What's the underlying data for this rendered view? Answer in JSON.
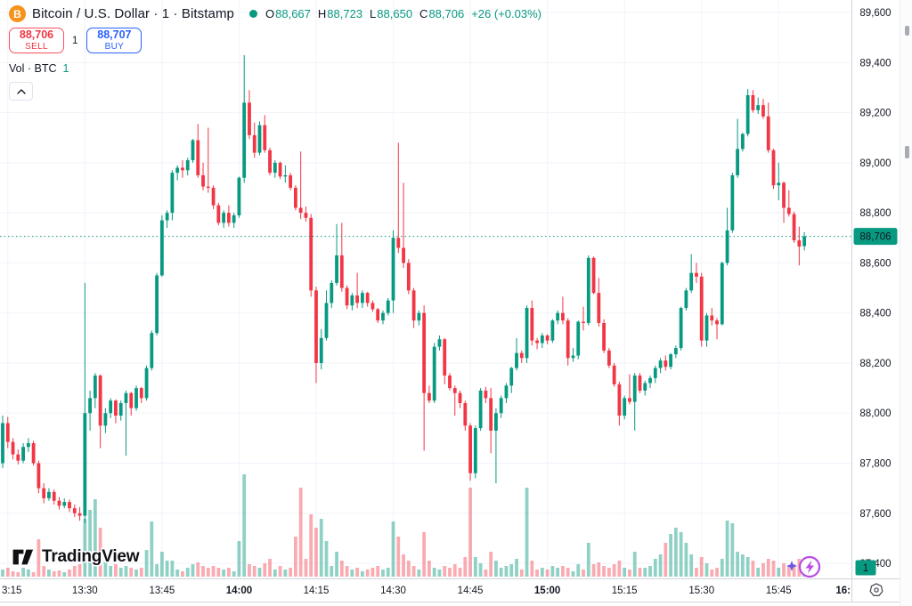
{
  "header": {
    "symbol_title": "Bitcoin / U.S. Dollar · 1 · Bitstamp",
    "ohlc": {
      "open_label": "O",
      "open": "88,667",
      "high_label": "H",
      "high": "88,723",
      "low_label": "L",
      "low": "88,650",
      "close_label": "C",
      "close": "88,706",
      "change": "+26 (+0.03%)"
    },
    "sell": {
      "price": "88,706",
      "label": "SELL"
    },
    "spread": "1",
    "buy": {
      "price": "88,707",
      "label": "BUY"
    },
    "volume_legend": {
      "label": "Vol · BTC",
      "value": "1"
    }
  },
  "watermark": {
    "text": "TradingView"
  },
  "colors": {
    "up": "#089981",
    "down": "#F23645",
    "vol_up": "rgba(8,153,129,0.45)",
    "vol_down": "rgba(242,54,69,0.42)",
    "grid": "#F0F3FA",
    "axis_border": "#D1D4DC",
    "text": "#131722",
    "buy_blue": "#2962FF",
    "bitcoin_orange": "#F7931A",
    "badge_text": "#ffffff"
  },
  "chart_data": {
    "type": "candlestick+volume",
    "symbol": "BTCUSD Bitstamp",
    "interval_minutes": 1,
    "start_time": "13:14",
    "end_time": "15:50",
    "grid": true,
    "legend_position": "top-left",
    "price_axis": {
      "side": "right",
      "tick_values": [
        89600,
        89400,
        89200,
        89000,
        88800,
        88600,
        88400,
        88200,
        88000,
        87800,
        87600,
        87400
      ],
      "tick_labels": [
        "89,600",
        "89,400",
        "89,200",
        "89,000",
        "88,800",
        "88,600",
        "88,400",
        "88,200",
        "88,000",
        "87,800",
        "87,600",
        "87,400"
      ]
    },
    "current_price": {
      "value": 88706,
      "label": "88,706"
    },
    "volume_axis_badge": "1",
    "time_axis": {
      "ticks": [
        {
          "idx": 1,
          "label": "3:15",
          "bold": false,
          "clip": "start"
        },
        {
          "idx": 16,
          "label": "13:30",
          "bold": false
        },
        {
          "idx": 31,
          "label": "13:45",
          "bold": false
        },
        {
          "idx": 46,
          "label": "14:00",
          "bold": true
        },
        {
          "idx": 61,
          "label": "14:15",
          "bold": false
        },
        {
          "idx": 76,
          "label": "14:30",
          "bold": false
        },
        {
          "idx": 91,
          "label": "14:45",
          "bold": false
        },
        {
          "idx": 106,
          "label": "15:00",
          "bold": true
        },
        {
          "idx": 121,
          "label": "15:15",
          "bold": false
        },
        {
          "idx": 136,
          "label": "15:30",
          "bold": false
        },
        {
          "idx": 151,
          "label": "15:45",
          "bold": false
        },
        {
          "idx": 166,
          "label": "16:",
          "bold": true,
          "clip": "end"
        }
      ]
    },
    "candles_format": [
      "open",
      "high",
      "low",
      "close",
      "relative_volume"
    ],
    "candles": [
      [
        87800,
        87990,
        87780,
        87960,
        8
      ],
      [
        87960,
        87985,
        87860,
        87885,
        10
      ],
      [
        87885,
        87900,
        87815,
        87835,
        6
      ],
      [
        87835,
        87855,
        87795,
        87810,
        5
      ],
      [
        87810,
        87880,
        87800,
        87865,
        10
      ],
      [
        87865,
        87900,
        87845,
        87880,
        8
      ],
      [
        87880,
        87890,
        87790,
        87800,
        5
      ],
      [
        87800,
        87810,
        87680,
        87700,
        42
      ],
      [
        87700,
        87720,
        87640,
        87660,
        12
      ],
      [
        87660,
        87700,
        87650,
        87685,
        8
      ],
      [
        87685,
        87695,
        87635,
        87650,
        6
      ],
      [
        87650,
        87665,
        87615,
        87630,
        7
      ],
      [
        87630,
        87660,
        87620,
        87645,
        5
      ],
      [
        87645,
        87655,
        87605,
        87620,
        8
      ],
      [
        87620,
        87635,
        87585,
        87600,
        12
      ],
      [
        87600,
        87625,
        87570,
        87590,
        14
      ],
      [
        87590,
        88520,
        87560,
        88000,
        65
      ],
      [
        88000,
        88090,
        87930,
        88060,
        75
      ],
      [
        88060,
        88160,
        88020,
        88150,
        87
      ],
      [
        88150,
        88155,
        87860,
        87950,
        55
      ],
      [
        87950,
        88020,
        87920,
        88000,
        20
      ],
      [
        88000,
        88060,
        87980,
        88050,
        12
      ],
      [
        88050,
        88055,
        87960,
        87990,
        14
      ],
      [
        87990,
        88050,
        87970,
        88040,
        10
      ],
      [
        88040,
        88090,
        87830,
        88080,
        12
      ],
      [
        88080,
        88085,
        87990,
        88020,
        10
      ],
      [
        88020,
        88110,
        88010,
        88100,
        8
      ],
      [
        88100,
        88105,
        88040,
        88060,
        10
      ],
      [
        88060,
        88190,
        88050,
        88180,
        30
      ],
      [
        88180,
        88330,
        88170,
        88320,
        62
      ],
      [
        88320,
        88560,
        88310,
        88550,
        14
      ],
      [
        88550,
        88790,
        88545,
        88770,
        28
      ],
      [
        88770,
        88810,
        88740,
        88800,
        18
      ],
      [
        88800,
        88970,
        88770,
        88960,
        18
      ],
      [
        88960,
        88990,
        88930,
        88980,
        8
      ],
      [
        88980,
        89010,
        88940,
        88970,
        6
      ],
      [
        88970,
        89020,
        88950,
        89010,
        10
      ],
      [
        89010,
        89095,
        89000,
        89090,
        14
      ],
      [
        89090,
        89155,
        88940,
        88950,
        16
      ],
      [
        88950,
        89000,
        88890,
        88905,
        12
      ],
      [
        88905,
        89140,
        88880,
        88900,
        10
      ],
      [
        88900,
        88910,
        88815,
        88830,
        12
      ],
      [
        88830,
        88840,
        88750,
        88760,
        10
      ],
      [
        88760,
        88810,
        88740,
        88800,
        8
      ],
      [
        88800,
        88830,
        88745,
        88760,
        10
      ],
      [
        88760,
        88800,
        88740,
        88790,
        6
      ],
      [
        88790,
        88945,
        88780,
        88940,
        40
      ],
      [
        88940,
        89430,
        88920,
        89240,
        115
      ],
      [
        89240,
        89290,
        89095,
        89110,
        14
      ],
      [
        89110,
        89160,
        89020,
        89040,
        12
      ],
      [
        89040,
        89165,
        89030,
        89150,
        10
      ],
      [
        89150,
        89190,
        89040,
        89050,
        15
      ],
      [
        89050,
        89060,
        88950,
        88960,
        20
      ],
      [
        88960,
        89010,
        88940,
        89000,
        8
      ],
      [
        89000,
        89005,
        88935,
        88945,
        12
      ],
      [
        88945,
        88990,
        88920,
        88950,
        8
      ],
      [
        88950,
        88960,
        88890,
        88900,
        10
      ],
      [
        88900,
        88910,
        88810,
        88820,
        45
      ],
      [
        88820,
        89045,
        88775,
        88800,
        100
      ],
      [
        88800,
        88825,
        88765,
        88780,
        20
      ],
      [
        88780,
        88795,
        88465,
        88490,
        70
      ],
      [
        88490,
        88505,
        88120,
        88200,
        55
      ],
      [
        88200,
        88335,
        88175,
        88300,
        65
      ],
      [
        88300,
        88490,
        88290,
        88440,
        40
      ],
      [
        88440,
        88530,
        88420,
        88520,
        12
      ],
      [
        88520,
        88755,
        88510,
        88630,
        28
      ],
      [
        88630,
        88760,
        88485,
        88500,
        18
      ],
      [
        88500,
        88510,
        88415,
        88430,
        12
      ],
      [
        88430,
        88480,
        88410,
        88470,
        8
      ],
      [
        88470,
        88560,
        88420,
        88440,
        10
      ],
      [
        88440,
        88490,
        88420,
        88480,
        6
      ],
      [
        88480,
        88485,
        88425,
        88440,
        8
      ],
      [
        88440,
        88450,
        88405,
        88415,
        10
      ],
      [
        88415,
        88420,
        88360,
        88370,
        12
      ],
      [
        88370,
        88410,
        88355,
        88400,
        8
      ],
      [
        88400,
        88460,
        88390,
        88450,
        10
      ],
      [
        88450,
        88730,
        88400,
        88700,
        62
      ],
      [
        88700,
        89080,
        88640,
        88660,
        45
      ],
      [
        88660,
        88920,
        88580,
        88600,
        25
      ],
      [
        88600,
        88615,
        88475,
        88490,
        18
      ],
      [
        88490,
        88500,
        88340,
        88370,
        12
      ],
      [
        88370,
        88410,
        88350,
        88400,
        8
      ],
      [
        88400,
        88430,
        87850,
        88080,
        50
      ],
      [
        88080,
        88110,
        88040,
        88050,
        18
      ],
      [
        88050,
        88280,
        88040,
        88265,
        10
      ],
      [
        88265,
        88310,
        88250,
        88295,
        8
      ],
      [
        88295,
        88300,
        88115,
        88150,
        12
      ],
      [
        88150,
        88160,
        88090,
        88100,
        10
      ],
      [
        88100,
        88110,
        87990,
        88080,
        14
      ],
      [
        88080,
        88090,
        88020,
        88040,
        10
      ],
      [
        88040,
        88050,
        87930,
        87950,
        22
      ],
      [
        87950,
        87960,
        87730,
        87760,
        100
      ],
      [
        87760,
        87950,
        87740,
        87940,
        22
      ],
      [
        87940,
        88100,
        87930,
        88090,
        15
      ],
      [
        88090,
        88105,
        88040,
        88060,
        8
      ],
      [
        88060,
        88100,
        87840,
        87930,
        28
      ],
      [
        87930,
        88020,
        87720,
        88000,
        18
      ],
      [
        88000,
        88070,
        87980,
        88060,
        10
      ],
      [
        88060,
        88120,
        88040,
        88110,
        12
      ],
      [
        88110,
        88185,
        88080,
        88180,
        14
      ],
      [
        88180,
        88300,
        88170,
        88240,
        20
      ],
      [
        88240,
        88250,
        88200,
        88220,
        8
      ],
      [
        88220,
        88430,
        88200,
        88420,
        100
      ],
      [
        88420,
        88450,
        88270,
        88290,
        18
      ],
      [
        88290,
        88300,
        88255,
        88280,
        8
      ],
      [
        88280,
        88320,
        88260,
        88310,
        10
      ],
      [
        88310,
        88315,
        88275,
        88290,
        8
      ],
      [
        88290,
        88375,
        88280,
        88370,
        12
      ],
      [
        88370,
        88410,
        88355,
        88400,
        10
      ],
      [
        88400,
        88465,
        88355,
        88370,
        12
      ],
      [
        88370,
        88380,
        88190,
        88220,
        10
      ],
      [
        88220,
        88260,
        88205,
        88230,
        6
      ],
      [
        88230,
        88370,
        88215,
        88365,
        14
      ],
      [
        88365,
        88425,
        88330,
        88360,
        8
      ],
      [
        88360,
        88630,
        88350,
        88620,
        38
      ],
      [
        88620,
        88625,
        88475,
        88480,
        14
      ],
      [
        88480,
        88540,
        88345,
        88360,
        16
      ],
      [
        88360,
        88375,
        88240,
        88250,
        12
      ],
      [
        88250,
        88260,
        88180,
        88190,
        10
      ],
      [
        88190,
        88200,
        88105,
        88115,
        14
      ],
      [
        88115,
        88125,
        87950,
        87990,
        18
      ],
      [
        87990,
        88070,
        87975,
        88060,
        10
      ],
      [
        88060,
        88155,
        88035,
        88045,
        8
      ],
      [
        88045,
        88160,
        87930,
        88150,
        28
      ],
      [
        88150,
        88160,
        88080,
        88090,
        10
      ],
      [
        88090,
        88130,
        88070,
        88120,
        10
      ],
      [
        88120,
        88150,
        88100,
        88140,
        12
      ],
      [
        88140,
        88190,
        88120,
        88180,
        20
      ],
      [
        88180,
        88220,
        88160,
        88210,
        25
      ],
      [
        88210,
        88230,
        88170,
        88185,
        38
      ],
      [
        88185,
        88240,
        88175,
        88235,
        48
      ],
      [
        88235,
        88270,
        88220,
        88260,
        55
      ],
      [
        88260,
        88425,
        88250,
        88420,
        50
      ],
      [
        88420,
        88500,
        88410,
        88490,
        38
      ],
      [
        88490,
        88635,
        88480,
        88560,
        25
      ],
      [
        88560,
        88600,
        88520,
        88545,
        10
      ],
      [
        88545,
        88560,
        88265,
        88290,
        22
      ],
      [
        88290,
        88400,
        88265,
        88390,
        15
      ],
      [
        88390,
        88420,
        88350,
        88370,
        8
      ],
      [
        88370,
        88380,
        88295,
        88355,
        10
      ],
      [
        88355,
        88605,
        88350,
        88600,
        20
      ],
      [
        88600,
        88820,
        88590,
        88730,
        63
      ],
      [
        88730,
        88960,
        88720,
        88950,
        60
      ],
      [
        88950,
        89175,
        88940,
        89055,
        28
      ],
      [
        89055,
        89120,
        89045,
        89115,
        25
      ],
      [
        89115,
        89295,
        89105,
        89270,
        22
      ],
      [
        89270,
        89290,
        89200,
        89210,
        18
      ],
      [
        89210,
        89260,
        89195,
        89230,
        10
      ],
      [
        89230,
        89255,
        89175,
        89185,
        15
      ],
      [
        89185,
        89240,
        89040,
        89050,
        20
      ],
      [
        89050,
        89055,
        88895,
        88910,
        18
      ],
      [
        88910,
        89000,
        88850,
        88920,
        10
      ],
      [
        88920,
        88925,
        88760,
        88820,
        15
      ],
      [
        88820,
        88890,
        88785,
        88795,
        12
      ],
      [
        88795,
        88805,
        88680,
        88690,
        14
      ],
      [
        88690,
        88745,
        88590,
        88665,
        20
      ],
      [
        88667,
        88723,
        88650,
        88706,
        12
      ]
    ]
  }
}
